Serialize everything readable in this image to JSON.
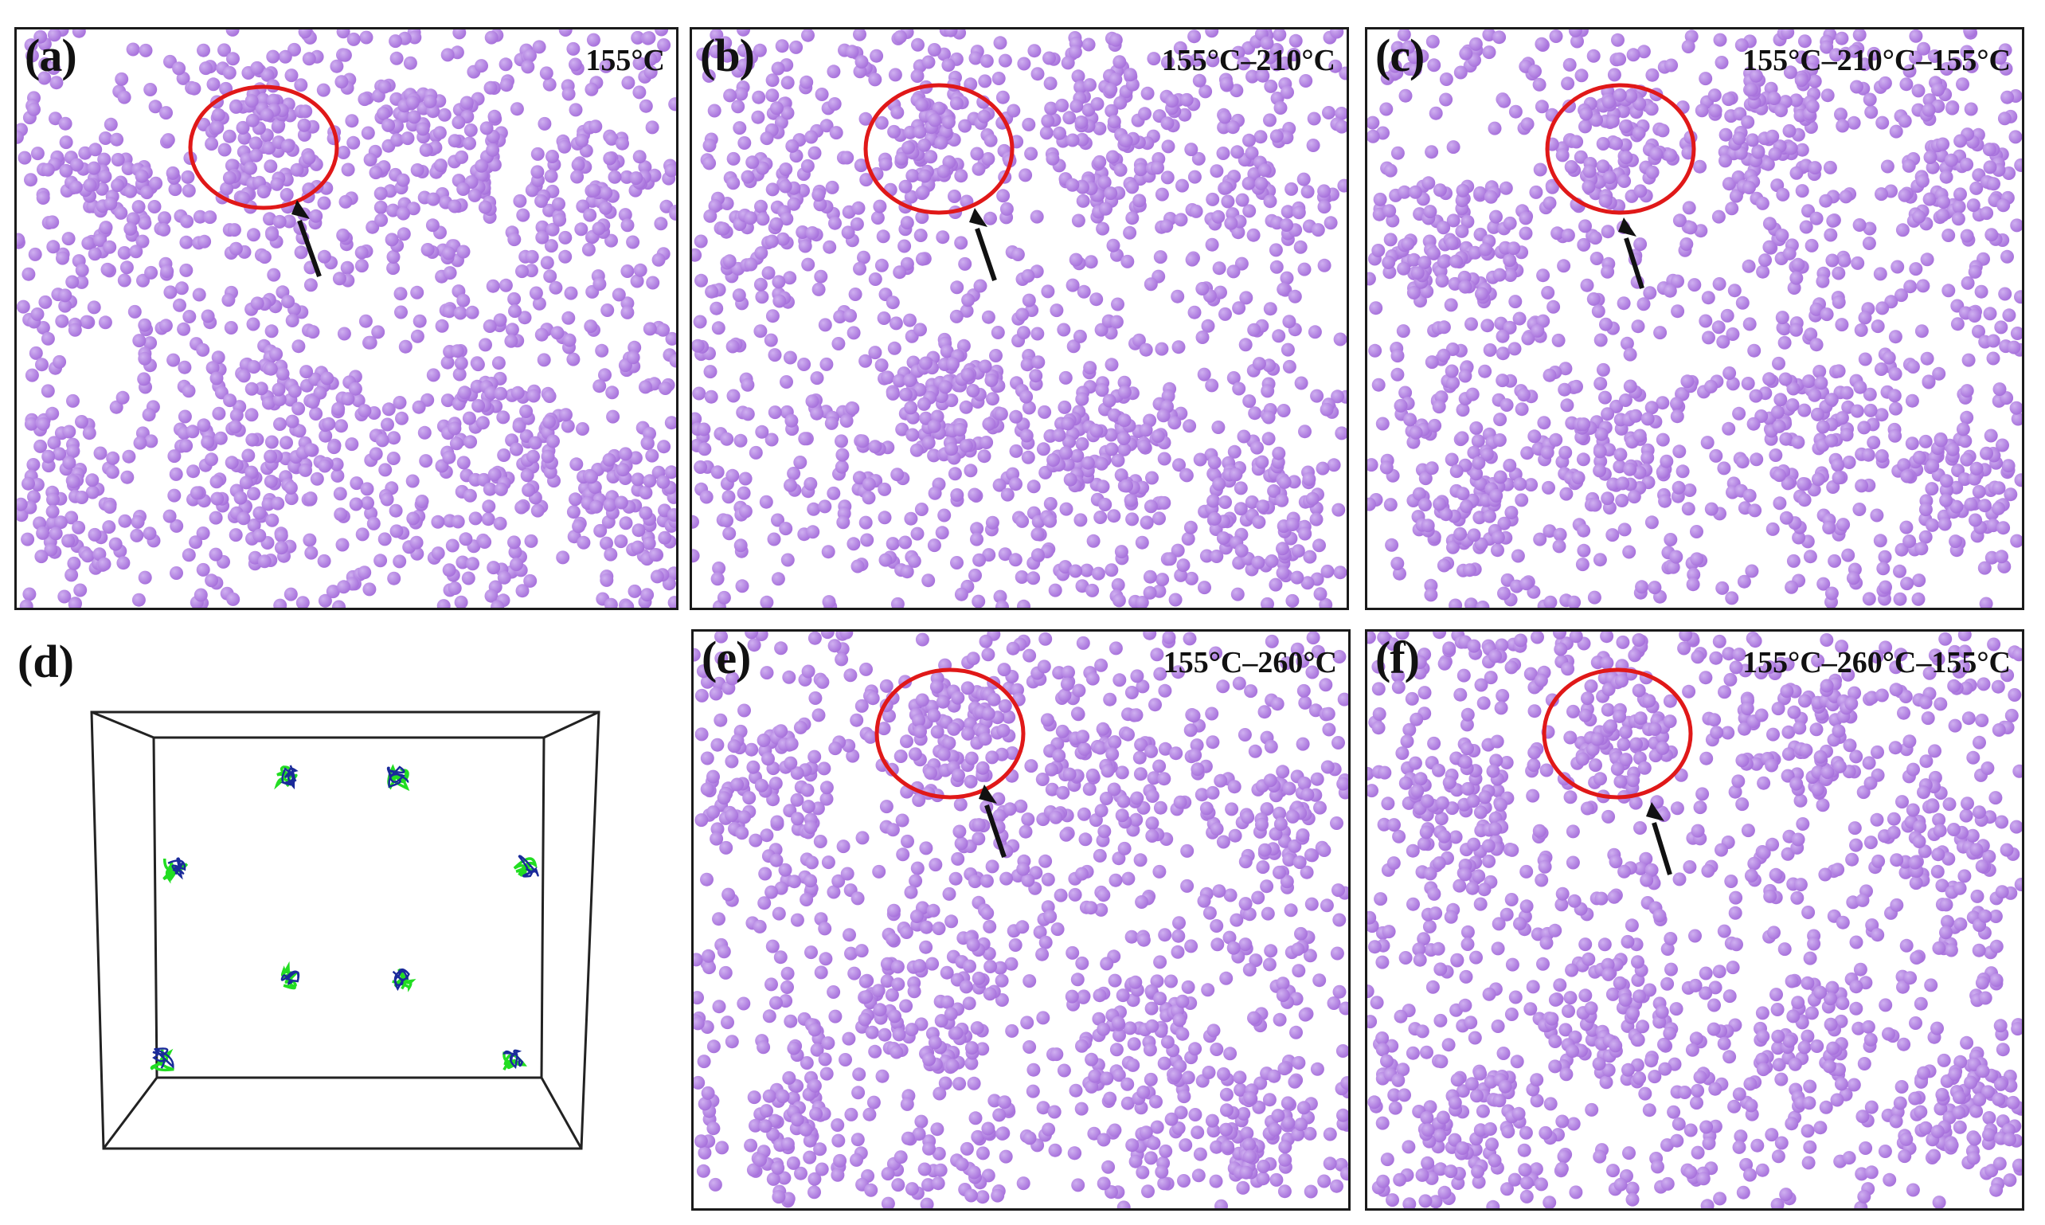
{
  "panels": [
    {
      "id": "a",
      "label": "(a)",
      "temperature": "155°C"
    },
    {
      "id": "b",
      "label": "(b)",
      "temperature": "155°C–210°C"
    },
    {
      "id": "c",
      "label": "(c)",
      "temperature": "155°C–210°C–155°C"
    },
    {
      "id": "d",
      "label": "(d)",
      "temperature": ""
    },
    {
      "id": "e",
      "label": "(e)",
      "temperature": "155°C–260°C"
    },
    {
      "id": "f",
      "label": "(f)",
      "temperature": "155°C–260°C–155°C"
    }
  ],
  "colors": {
    "particle": "#a872dc",
    "particle_highlight": "#cfb0f0",
    "circle": "#e01818",
    "arrow": "#111111",
    "chain_green": "#22dd22",
    "chain_blue": "#1a2a9a",
    "frame": "#1a1a1a"
  }
}
